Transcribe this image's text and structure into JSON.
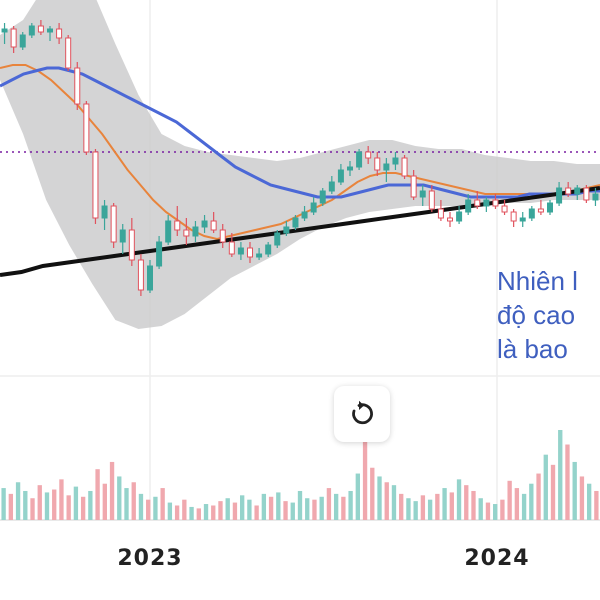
{
  "chart_data": {
    "type": "candlestick",
    "x_ticks": [
      "2023",
      "2024"
    ],
    "annotation_lines": [
      "Nhiên l",
      "độ cao",
      "là bao"
    ],
    "colors": {
      "up": "#3aa59a",
      "down": "#e0525d",
      "volume_up": "#94d3cb",
      "volume_down": "#f0a8ae",
      "ma_blue": "#4b68d6",
      "ma_orange": "#e8843c",
      "ma_black": "#111111",
      "band_fill": "#c9c9cb",
      "dotted_level": "#7a1fa2",
      "annotation": "#3f5fbf"
    },
    "price_ylim": [
      0,
      100
    ],
    "dotted_level": 56,
    "candles": [
      [
        96,
        99,
        92,
        97
      ],
      [
        97,
        98,
        89,
        91
      ],
      [
        91,
        96,
        90,
        95
      ],
      [
        95,
        99,
        94,
        98
      ],
      [
        98,
        100,
        95,
        96
      ],
      [
        96,
        98,
        93,
        97
      ],
      [
        97,
        99,
        92,
        94
      ],
      [
        94,
        95,
        83,
        84
      ],
      [
        84,
        86,
        70,
        72
      ],
      [
        72,
        73,
        55,
        56
      ],
      [
        56,
        57,
        32,
        34
      ],
      [
        34,
        40,
        30,
        38
      ],
      [
        38,
        39,
        24,
        26
      ],
      [
        26,
        32,
        22,
        30
      ],
      [
        30,
        34,
        18,
        20
      ],
      [
        20,
        22,
        8,
        10
      ],
      [
        10,
        20,
        9,
        18
      ],
      [
        18,
        28,
        17,
        26
      ],
      [
        26,
        35,
        25,
        33
      ],
      [
        33,
        38,
        28,
        30
      ],
      [
        30,
        34,
        25,
        28
      ],
      [
        28,
        33,
        26,
        31
      ],
      [
        31,
        35,
        29,
        33
      ],
      [
        33,
        36,
        29,
        30
      ],
      [
        30,
        32,
        24,
        26
      ],
      [
        26,
        29,
        21,
        22
      ],
      [
        22,
        26,
        20,
        24
      ],
      [
        24,
        26,
        19,
        21
      ],
      [
        21,
        24,
        20,
        22
      ],
      [
        22,
        26,
        21,
        25
      ],
      [
        25,
        30,
        24,
        29
      ],
      [
        29,
        33,
        28,
        31
      ],
      [
        31,
        35,
        30,
        34
      ],
      [
        34,
        38,
        33,
        36
      ],
      [
        36,
        41,
        35,
        39
      ],
      [
        39,
        44,
        38,
        43
      ],
      [
        43,
        48,
        42,
        46
      ],
      [
        46,
        52,
        45,
        50
      ],
      [
        50,
        53,
        48,
        51
      ],
      [
        51,
        57,
        50,
        56
      ],
      [
        56,
        58,
        52,
        54
      ],
      [
        54,
        56,
        48,
        50
      ],
      [
        50,
        54,
        46,
        52
      ],
      [
        52,
        56,
        50,
        54
      ],
      [
        54,
        55,
        47,
        48
      ],
      [
        48,
        50,
        40,
        41
      ],
      [
        41,
        45,
        38,
        43
      ],
      [
        43,
        45,
        36,
        37
      ],
      [
        37,
        40,
        33,
        34
      ],
      [
        34,
        36,
        31,
        33
      ],
      [
        33,
        38,
        32,
        36
      ],
      [
        36,
        42,
        35,
        40
      ],
      [
        40,
        43,
        37,
        38
      ],
      [
        38,
        41,
        36,
        40
      ],
      [
        40,
        42,
        37,
        38
      ],
      [
        38,
        40,
        35,
        36
      ],
      [
        36,
        37,
        31,
        33
      ],
      [
        33,
        36,
        31,
        34
      ],
      [
        34,
        38,
        33,
        37
      ],
      [
        37,
        40,
        35,
        36
      ],
      [
        36,
        40,
        35,
        39
      ],
      [
        39,
        46,
        38,
        44
      ],
      [
        44,
        46,
        41,
        42
      ],
      [
        42,
        45,
        40,
        44
      ],
      [
        44,
        45,
        39,
        40
      ],
      [
        40,
        44,
        38,
        42
      ]
    ],
    "ma_blue": [
      78,
      80,
      82,
      83,
      84,
      84,
      83,
      82,
      80,
      78,
      76,
      74,
      72,
      70,
      68,
      66,
      63,
      60,
      57,
      54,
      51,
      49,
      47,
      45,
      44,
      43,
      42,
      41,
      41,
      41,
      42,
      43,
      44,
      45,
      45,
      45,
      45,
      44,
      43,
      42,
      41,
      41,
      41,
      41,
      41,
      42,
      42,
      42,
      42,
      42,
      43,
      43
    ],
    "ma_orange": [
      84,
      85,
      85,
      83,
      80,
      76,
      72,
      67,
      62,
      56,
      50,
      45,
      40,
      36,
      33,
      30,
      28,
      27,
      28,
      29,
      30,
      31,
      32,
      34,
      36,
      38,
      40,
      43,
      46,
      48,
      49,
      49,
      48,
      47,
      46,
      45,
      44,
      43,
      42,
      42,
      42,
      42,
      42,
      42,
      42,
      43,
      44,
      45
    ],
    "ma_black": [
      15,
      16,
      18,
      19,
      20,
      21,
      22,
      23,
      24,
      25,
      26,
      27,
      28,
      29,
      30,
      31,
      32,
      33,
      34,
      35,
      36,
      37,
      38,
      39,
      40,
      41,
      42,
      43,
      44
    ],
    "band_upper": [
      95,
      100,
      112,
      115,
      110,
      92,
      75,
      62,
      58,
      56,
      55,
      54,
      53,
      54,
      56,
      58,
      60,
      60,
      58,
      57,
      57,
      55,
      54,
      53,
      53,
      52,
      52
    ],
    "band_lower": [
      80,
      62,
      40,
      25,
      12,
      0,
      -3,
      -2,
      2,
      8,
      14,
      18,
      22,
      27,
      31,
      34,
      36,
      37,
      38,
      38,
      38,
      38,
      39,
      39,
      40,
      40,
      40
    ],
    "volumes": [
      [
        22,
        1
      ],
      [
        18,
        0
      ],
      [
        26,
        1
      ],
      [
        20,
        1
      ],
      [
        15,
        0
      ],
      [
        24,
        0
      ],
      [
        19,
        1
      ],
      [
        21,
        0
      ],
      [
        28,
        0
      ],
      [
        17,
        0
      ],
      [
        23,
        1
      ],
      [
        16,
        0
      ],
      [
        20,
        1
      ],
      [
        35,
        0
      ],
      [
        25,
        0
      ],
      [
        40,
        0
      ],
      [
        30,
        1
      ],
      [
        22,
        1
      ],
      [
        26,
        0
      ],
      [
        18,
        1
      ],
      [
        14,
        0
      ],
      [
        16,
        1
      ],
      [
        22,
        0
      ],
      [
        12,
        1
      ],
      [
        10,
        0
      ],
      [
        14,
        0
      ],
      [
        9,
        1
      ],
      [
        8,
        0
      ],
      [
        11,
        1
      ],
      [
        10,
        0
      ],
      [
        13,
        0
      ],
      [
        15,
        1
      ],
      [
        12,
        0
      ],
      [
        17,
        1
      ],
      [
        14,
        1
      ],
      [
        10,
        0
      ],
      [
        18,
        1
      ],
      [
        16,
        0
      ],
      [
        19,
        1
      ],
      [
        13,
        0
      ],
      [
        12,
        1
      ],
      [
        20,
        1
      ],
      [
        15,
        1
      ],
      [
        14,
        0
      ],
      [
        16,
        1
      ],
      [
        22,
        0
      ],
      [
        18,
        1
      ],
      [
        16,
        0
      ],
      [
        20,
        1
      ],
      [
        32,
        1
      ],
      [
        58,
        0
      ],
      [
        36,
        0
      ],
      [
        30,
        1
      ],
      [
        26,
        0
      ],
      [
        24,
        1
      ],
      [
        18,
        0
      ],
      [
        15,
        1
      ],
      [
        13,
        1
      ],
      [
        17,
        0
      ],
      [
        14,
        1
      ],
      [
        18,
        0
      ],
      [
        22,
        1
      ],
      [
        19,
        0
      ],
      [
        28,
        1
      ],
      [
        24,
        0
      ],
      [
        20,
        0
      ],
      [
        15,
        1
      ],
      [
        12,
        0
      ],
      [
        11,
        1
      ],
      [
        14,
        0
      ],
      [
        27,
        0
      ],
      [
        22,
        0
      ],
      [
        18,
        1
      ],
      [
        25,
        1
      ],
      [
        32,
        0
      ],
      [
        45,
        1
      ],
      [
        38,
        0
      ],
      [
        62,
        1
      ],
      [
        52,
        0
      ],
      [
        40,
        1
      ],
      [
        30,
        0
      ],
      [
        25,
        1
      ],
      [
        20,
        0
      ]
    ]
  },
  "ui": {
    "reload_icon": "reload-icon"
  }
}
